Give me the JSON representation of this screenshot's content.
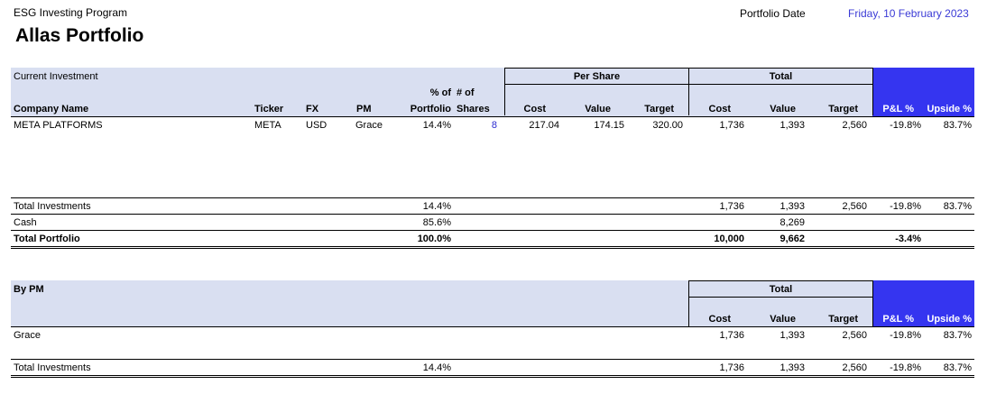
{
  "header": {
    "program": "ESG Investing Program",
    "title": "Allas Portfolio",
    "date_label": "Portfolio Date",
    "date_value": "Friday, 10 February 2023"
  },
  "section1": {
    "label": "Current Investment",
    "group_per_share": "Per Share",
    "group_total": "Total",
    "columns": {
      "company": "Company Name",
      "ticker": "Ticker",
      "fx": "FX",
      "pm": "PM",
      "pct_top": "% of",
      "pct_bottom": "Portfolio",
      "shares_top": "# of",
      "shares_bottom": "Shares",
      "ps_cost": "Cost",
      "ps_value": "Value",
      "ps_target": "Target",
      "t_cost": "Cost",
      "t_value": "Value",
      "t_target": "Target",
      "pnl": "P&L %",
      "upside": "Upside %"
    },
    "rows": [
      {
        "company": "META PLATFORMS",
        "ticker": "META",
        "fx": "USD",
        "pm": "Grace",
        "pct": "14.4%",
        "shares": "8",
        "ps_cost": "217.04",
        "ps_value": "174.15",
        "ps_target": "320.00",
        "t_cost": "1,736",
        "t_value": "1,393",
        "t_target": "2,560",
        "pnl": "-19.8%",
        "upside": "83.7%"
      }
    ],
    "total_investments": {
      "label": "Total Investments",
      "pct": "14.4%",
      "t_cost": "1,736",
      "t_value": "1,393",
      "t_target": "2,560",
      "pnl": "-19.8%",
      "upside": "83.7%"
    },
    "cash": {
      "label": "Cash",
      "pct": "85.6%",
      "t_value": "8,269"
    },
    "total_portfolio": {
      "label": "Total Portfolio",
      "pct": "100.0%",
      "t_cost": "10,000",
      "t_value": "9,662",
      "pnl": "-3.4%"
    }
  },
  "section2": {
    "label": "By PM",
    "group_total": "Total",
    "columns": {
      "t_cost": "Cost",
      "t_value": "Value",
      "t_target": "Target",
      "pnl": "P&L %",
      "upside": "Upside %"
    },
    "rows": [
      {
        "pm": "Grace",
        "t_cost": "1,736",
        "t_value": "1,393",
        "t_target": "2,560",
        "pnl": "-19.8%",
        "upside": "83.7%"
      }
    ],
    "total_investments": {
      "label": "Total Investments",
      "pct": "14.4%",
      "t_cost": "1,736",
      "t_value": "1,393",
      "t_target": "2,560",
      "pnl": "-19.8%",
      "upside": "83.7%"
    }
  },
  "colors": {
    "header_band": "#d9dff1",
    "accent_blue": "#3535f0",
    "date_text": "#3b3bd6"
  }
}
